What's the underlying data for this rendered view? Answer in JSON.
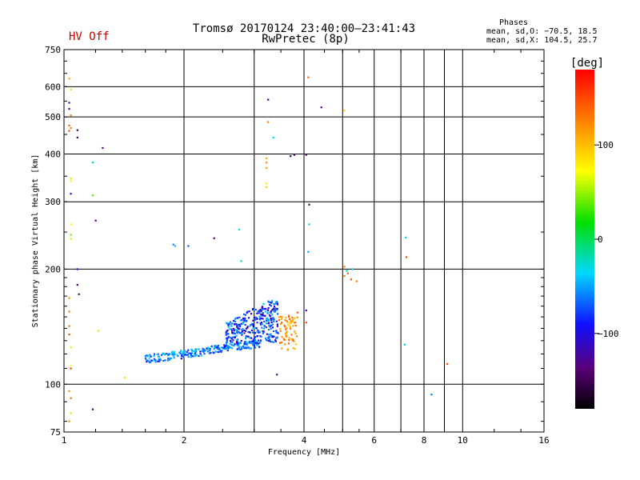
{
  "status_label": "HV Off",
  "chart_data": {
    "type": "scatter",
    "title": "Tromsø 20170124 23:40:00–23:41:43",
    "subtitle": "RwPretec (8p)",
    "xlabel": "Frequency [MHz]",
    "ylabel": "Stationary phase Virtual Height [km]",
    "xscale": "log",
    "yscale": "log",
    "xlim": [
      1,
      16
    ],
    "ylim": [
      75,
      750
    ],
    "x_ticks": [
      1,
      2,
      4,
      6,
      8,
      10,
      16
    ],
    "x_tick_labels": [
      "1",
      "2",
      "4",
      "6",
      "8",
      "10",
      "16"
    ],
    "x_grid": [
      2,
      3,
      4,
      5,
      6,
      7,
      8,
      9,
      10
    ],
    "y_ticks": [
      75,
      100,
      200,
      300,
      400,
      500,
      600,
      750
    ],
    "y_tick_labels": [
      "75",
      "100",
      "200",
      "300",
      "400",
      "500",
      "600",
      "750"
    ],
    "y_grid": [
      100,
      200,
      300,
      400,
      500,
      600
    ],
    "grid": true,
    "phases_box": {
      "heading": "Phases",
      "line1": "mean, sd,O: −70.5, 18.5",
      "line2": "mean, sd,X: 104.5, 25.7"
    },
    "colorbar": {
      "unit_label": "[deg]",
      "range": [
        -180,
        180
      ],
      "ticks": [
        -100,
        0,
        100
      ],
      "tick_labels": [
        "−100",
        "0",
        "100"
      ]
    },
    "points": [
      [
        1.03,
        630,
        110
      ],
      [
        1.04,
        590,
        60
      ],
      [
        1.03,
        545,
        -100
      ],
      [
        1.03,
        525,
        -120
      ],
      [
        1.04,
        505,
        130
      ],
      [
        1.03,
        475,
        140
      ],
      [
        1.04,
        468,
        130
      ],
      [
        1.03,
        460,
        150
      ],
      [
        1.08,
        462,
        -150
      ],
      [
        1.08,
        442,
        -150
      ],
      [
        1.25,
        415,
        -130
      ],
      [
        1.04,
        345,
        60
      ],
      [
        1.04,
        340,
        70
      ],
      [
        1.04,
        315,
        -90
      ],
      [
        1.18,
        380,
        -10
      ],
      [
        1.18,
        312,
        40
      ],
      [
        1.2,
        268,
        -140
      ],
      [
        1.04,
        262,
        70
      ],
      [
        1.04,
        246,
        40
      ],
      [
        1.04,
        240,
        60
      ],
      [
        1.08,
        200,
        -100
      ],
      [
        1.08,
        182,
        -140
      ],
      [
        1.09,
        172,
        -140
      ],
      [
        1.03,
        168,
        120
      ],
      [
        1.03,
        155,
        130
      ],
      [
        1.03,
        142,
        130
      ],
      [
        1.03,
        135,
        150
      ],
      [
        1.04,
        125,
        60
      ],
      [
        1.04,
        112,
        70
      ],
      [
        1.04,
        110,
        150
      ],
      [
        1.03,
        96,
        120
      ],
      [
        1.04,
        92,
        130
      ],
      [
        1.04,
        84,
        60
      ],
      [
        1.03,
        80,
        120
      ],
      [
        1.18,
        86,
        -140
      ],
      [
        1.22,
        138,
        60
      ],
      [
        1.42,
        104,
        90
      ],
      [
        1.88,
        232,
        -60
      ],
      [
        1.9,
        230,
        -40
      ],
      [
        2.05,
        230,
        -70
      ],
      [
        2.38,
        241,
        -140
      ],
      [
        2.75,
        254,
        -30
      ],
      [
        2.78,
        210,
        -20
      ],
      [
        3.25,
        555,
        -140
      ],
      [
        3.25,
        485,
        130
      ],
      [
        3.35,
        442,
        -30
      ],
      [
        3.22,
        390,
        110
      ],
      [
        3.22,
        380,
        120
      ],
      [
        3.22,
        368,
        110
      ],
      [
        3.22,
        335,
        80
      ],
      [
        3.22,
        328,
        90
      ],
      [
        3.7,
        395,
        -160
      ],
      [
        3.78,
        398,
        -130
      ],
      [
        4.05,
        398,
        -140
      ],
      [
        4.1,
        635,
        140
      ],
      [
        4.42,
        530,
        -130
      ],
      [
        5.05,
        520,
        90
      ],
      [
        4.12,
        295,
        -150
      ],
      [
        4.12,
        262,
        -40
      ],
      [
        4.1,
        222,
        -50
      ],
      [
        5.05,
        203,
        130
      ],
      [
        5.15,
        195,
        140
      ],
      [
        5.3,
        200,
        -40
      ],
      [
        5.25,
        188,
        150
      ],
      [
        5.42,
        186,
        130
      ],
      [
        5.05,
        192,
        130
      ],
      [
        5.12,
        198,
        -20
      ],
      [
        7.2,
        242,
        -40
      ],
      [
        7.22,
        215,
        150
      ],
      [
        7.15,
        127,
        -40
      ],
      [
        8.35,
        94,
        -60
      ],
      [
        9.15,
        113,
        150
      ],
      [
        4.05,
        156,
        -110
      ],
      [
        3.85,
        154,
        140
      ],
      [
        3.42,
        106,
        -140
      ],
      [
        4.05,
        145,
        150
      ]
    ],
    "trace_low": {
      "x_range": [
        1.6,
        3.1
      ],
      "y_start": 116,
      "y_end": 128,
      "phase": -60
    },
    "cloud": {
      "x_range": [
        2.55,
        3.45
      ],
      "y_range": [
        128,
        170
      ],
      "phase": -80
    },
    "cluster_orange": {
      "x_range": [
        3.45,
        3.85
      ],
      "y_range": [
        122,
        152
      ],
      "phase": 120
    }
  }
}
